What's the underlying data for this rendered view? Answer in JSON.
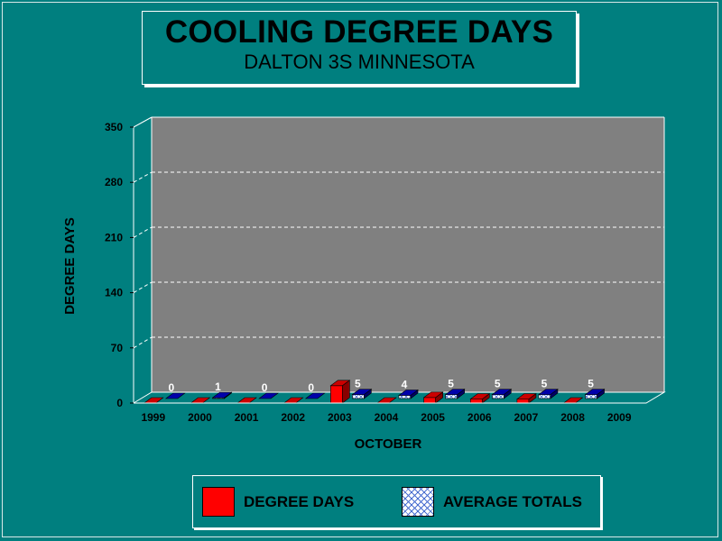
{
  "title": "COOLING DEGREE DAYS",
  "subtitle": "DALTON 3S MINNESOTA",
  "chart_data": {
    "type": "bar",
    "title": "COOLING DEGREE DAYS",
    "subtitle": "DALTON 3S MINNESOTA",
    "xlabel": "OCTOBER",
    "ylabel": "DEGREE DAYS",
    "categories": [
      "1999",
      "2000",
      "2001",
      "2002",
      "2003",
      "2004",
      "2005",
      "2006",
      "2007",
      "2008",
      "2009"
    ],
    "series": [
      {
        "name": "DEGREE DAYS",
        "values": [
          0,
          0,
          0,
          0,
          22,
          0,
          7,
          5,
          5,
          0,
          null
        ],
        "color": "#ff0000"
      },
      {
        "name": "AVERAGE TOTALS",
        "values": [
          0,
          1,
          0,
          0,
          5,
          4,
          5,
          5,
          5,
          5,
          null
        ],
        "labels": [
          "0",
          "1",
          "0",
          "0",
          "5",
          "4",
          "5",
          "5",
          "5",
          "5",
          ""
        ],
        "color": "#0000aa"
      }
    ],
    "ylim": [
      0,
      350
    ],
    "yticks": [
      0,
      70,
      140,
      210,
      280,
      350
    ],
    "grid": true,
    "legend_position": "bottom"
  },
  "legend": [
    {
      "label": "DEGREE DAYS"
    },
    {
      "label": "AVERAGE TOTALS"
    }
  ],
  "colors": {
    "background": "#007f7f",
    "plot_back": "#808080",
    "plot_side": "#007f7f",
    "degree_days": "#ff0000",
    "average_totals": "#0000aa"
  }
}
